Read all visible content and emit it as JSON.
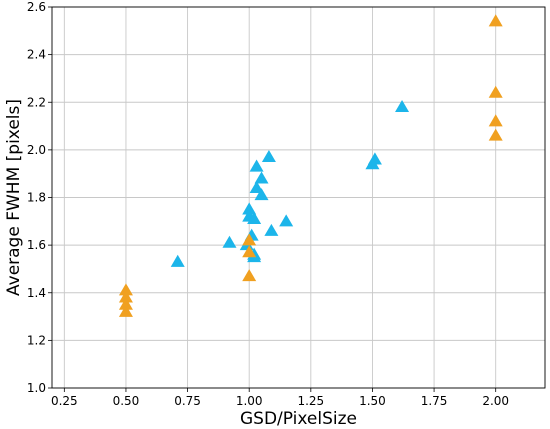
{
  "chart_data": {
    "type": "scatter",
    "title": "",
    "xlabel": "GSD/PixelSize",
    "ylabel": "Average FWHM [pixels]",
    "xlim": [
      0.2,
      2.2
    ],
    "ylim": [
      1.0,
      2.6
    ],
    "xticks": [
      0.25,
      0.5,
      0.75,
      1.0,
      1.25,
      1.5,
      1.75,
      2.0
    ],
    "xtick_labels": [
      "0.25",
      "0.50",
      "0.75",
      "1.00",
      "1.25",
      "1.50",
      "1.75",
      "2.00"
    ],
    "yticks": [
      1.0,
      1.2,
      1.4,
      1.6,
      1.8,
      2.0,
      2.2,
      2.4,
      2.6
    ],
    "ytick_labels": [
      "1.0",
      "1.2",
      "1.4",
      "1.6",
      "1.8",
      "2.0",
      "2.2",
      "2.4",
      "2.6"
    ],
    "grid": true,
    "marker": "triangle-up",
    "series": [
      {
        "color": "#1cb5ea",
        "points": [
          [
            0.71,
            1.53
          ],
          [
            0.92,
            1.61
          ],
          [
            0.99,
            1.6
          ],
          [
            1.0,
            1.75
          ],
          [
            1.0,
            1.72
          ],
          [
            1.01,
            1.64
          ],
          [
            1.02,
            1.56
          ],
          [
            1.02,
            1.55
          ],
          [
            1.02,
            1.71
          ],
          [
            1.03,
            1.93
          ],
          [
            1.03,
            1.84
          ],
          [
            1.05,
            1.88
          ],
          [
            1.05,
            1.81
          ],
          [
            1.08,
            1.97
          ],
          [
            1.09,
            1.66
          ],
          [
            1.15,
            1.7
          ],
          [
            1.5,
            1.94
          ],
          [
            1.51,
            1.96
          ],
          [
            1.62,
            2.18
          ]
        ]
      },
      {
        "color": "#f0a020",
        "points": [
          [
            0.5,
            1.41
          ],
          [
            0.5,
            1.38
          ],
          [
            0.5,
            1.35
          ],
          [
            0.5,
            1.32
          ],
          [
            1.0,
            1.62
          ],
          [
            1.0,
            1.57
          ],
          [
            1.0,
            1.47
          ],
          [
            2.0,
            2.54
          ],
          [
            2.0,
            2.24
          ],
          [
            2.0,
            2.12
          ],
          [
            2.0,
            2.06
          ]
        ]
      }
    ]
  }
}
